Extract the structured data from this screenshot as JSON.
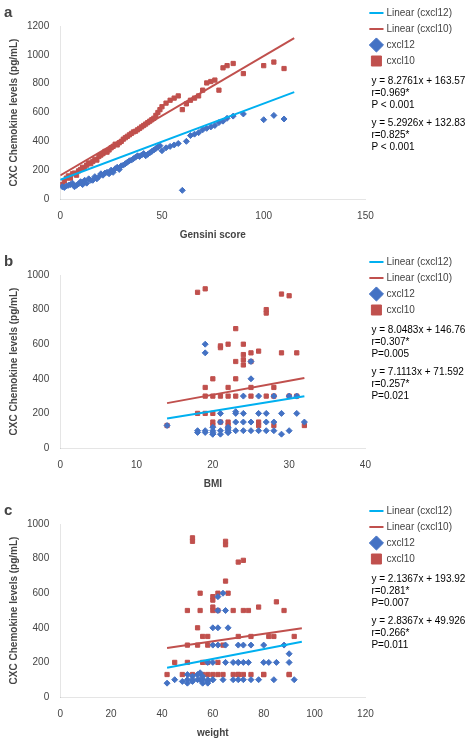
{
  "chart_data": [
    {
      "type": "scatter",
      "title": "a",
      "x_label": "Gensini score",
      "y_label": "CXC Chemokine levels (pg/mL)",
      "xlim": [
        0,
        150
      ],
      "ylim": [
        0,
        1200
      ],
      "xticks": [
        0,
        50,
        100,
        150
      ],
      "yticks": [
        0,
        200,
        400,
        600,
        800,
        1000,
        1200
      ],
      "grid": false,
      "legend": "right",
      "series": [
        {
          "name": "cxcl12",
          "type": "scatter",
          "marker": "diamond",
          "color": "#4472C4",
          "x": [
            1,
            2,
            3,
            4,
            5,
            6,
            7,
            8,
            9,
            10,
            11,
            12,
            13,
            14,
            15,
            16,
            17,
            18,
            19,
            20,
            21,
            22,
            23,
            24,
            25,
            26,
            27,
            28,
            29,
            30,
            31,
            32,
            33,
            34,
            35,
            36,
            37,
            38,
            39,
            40,
            41,
            42,
            43,
            44,
            45,
            46,
            47,
            48,
            49,
            50,
            52,
            54,
            56,
            58,
            60,
            62,
            64,
            66,
            68,
            70,
            72,
            74,
            76,
            78,
            80,
            82,
            85,
            90,
            100,
            105,
            110
          ],
          "values": [
            85,
            80,
            90,
            95,
            100,
            110,
            85,
            95,
            105,
            120,
            100,
            130,
            110,
            140,
            130,
            130,
            155,
            140,
            155,
            175,
            165,
            180,
            185,
            175,
            200,
            185,
            210,
            220,
            205,
            230,
            235,
            245,
            255,
            265,
            270,
            280,
            290,
            300,
            295,
            305,
            315,
            300,
            310,
            320,
            330,
            340,
            350,
            360,
            370,
            335,
            355,
            365,
            375,
            385,
            60,
            400,
            440,
            450,
            460,
            480,
            490,
            500,
            510,
            530,
            540,
            560,
            575,
            590,
            550,
            580,
            555
          ]
        },
        {
          "name": "cxcl10",
          "type": "scatter",
          "marker": "square",
          "color": "#C0504D",
          "x": [
            1,
            2,
            3,
            4,
            5,
            6,
            7,
            8,
            9,
            10,
            11,
            12,
            13,
            14,
            15,
            16,
            17,
            18,
            19,
            20,
            21,
            22,
            23,
            24,
            25,
            26,
            27,
            28,
            29,
            30,
            31,
            32,
            33,
            34,
            35,
            36,
            37,
            38,
            39,
            40,
            41,
            42,
            43,
            44,
            45,
            46,
            47,
            48,
            49,
            50,
            52,
            54,
            56,
            58,
            60,
            62,
            64,
            66,
            68,
            70,
            72,
            74,
            76,
            78,
            80,
            82,
            85,
            90,
            100,
            105,
            110
          ],
          "values": [
            100,
            125,
            145,
            160,
            145,
            175,
            180,
            165,
            195,
            205,
            220,
            215,
            235,
            250,
            245,
            260,
            275,
            270,
            295,
            305,
            315,
            330,
            325,
            340,
            355,
            365,
            380,
            375,
            390,
            400,
            415,
            425,
            435,
            445,
            455,
            465,
            470,
            480,
            490,
            500,
            510,
            520,
            530,
            540,
            550,
            560,
            580,
            600,
            620,
            640,
            665,
            685,
            700,
            715,
            620,
            660,
            685,
            700,
            715,
            755,
            805,
            815,
            825,
            755,
            910,
            925,
            940,
            870,
            925,
            950,
            905
          ]
        },
        {
          "name": "Linear (cxcl12)",
          "type": "line",
          "line_style": "solid",
          "color": "#00B0F0",
          "x": [
            0,
            115
          ],
          "values": [
            132.83,
            741.479
          ]
        },
        {
          "name": "Linear (cxcl10)",
          "type": "line",
          "line_style": "solid",
          "color": "#C0504D",
          "x": [
            0,
            115
          ],
          "values": [
            163.57,
            1115.3215
          ]
        }
      ],
      "annotations": [
        "y = 8.2761x + 163.57",
        "r=0.969*",
        "P < 0.001",
        "y = 5.2926x + 132.83",
        "r=0.825*",
        "P < 0.001"
      ]
    },
    {
      "type": "scatter",
      "title": "b",
      "x_label": "BMI",
      "y_label": "CXC Chemokine levels (pg/mL)",
      "xlim": [
        0,
        40
      ],
      "ylim": [
        0,
        1000
      ],
      "xticks": [
        0,
        10,
        20,
        30,
        40
      ],
      "yticks": [
        0,
        200,
        400,
        600,
        800,
        1000
      ],
      "grid": false,
      "legend": "right",
      "series": [
        {
          "name": "cxcl12",
          "type": "scatter",
          "marker": "diamond",
          "color": "#4472C4",
          "x": [
            14,
            18,
            18,
            19,
            19,
            19,
            19,
            20,
            20,
            20,
            20,
            20,
            21,
            21,
            21,
            21,
            22,
            22,
            22,
            22,
            22,
            23,
            23,
            23,
            23,
            24,
            24,
            24,
            24,
            25,
            25,
            25,
            25,
            26,
            26,
            26,
            27,
            27,
            27,
            28,
            28,
            28,
            29,
            29,
            30,
            30,
            31,
            31,
            32
          ],
          "values": [
            130,
            100,
            90,
            550,
            600,
            100,
            90,
            80,
            100,
            120,
            90,
            80,
            200,
            150,
            100,
            80,
            90,
            100,
            110,
            120,
            90,
            200,
            210,
            150,
            100,
            300,
            200,
            150,
            100,
            500,
            400,
            150,
            100,
            200,
            300,
            100,
            200,
            150,
            100,
            300,
            150,
            100,
            200,
            80,
            300,
            100,
            200,
            300,
            150
          ]
        },
        {
          "name": "cxcl10",
          "type": "scatter",
          "marker": "square",
          "color": "#C0504D",
          "x": [
            14,
            18,
            18,
            19,
            19,
            19,
            19,
            20,
            20,
            20,
            20,
            20,
            21,
            21,
            21,
            21,
            22,
            22,
            22,
            22,
            22,
            23,
            23,
            23,
            23,
            24,
            24,
            24,
            24,
            25,
            25,
            25,
            25,
            26,
            26,
            26,
            27,
            27,
            27,
            28,
            28,
            28,
            29,
            29,
            30,
            30,
            31,
            31,
            32
          ],
          "values": [
            130,
            200,
            900,
            920,
            300,
            350,
            200,
            130,
            150,
            200,
            300,
            400,
            150,
            300,
            580,
            590,
            600,
            300,
            350,
            130,
            150,
            690,
            500,
            400,
            300,
            600,
            540,
            510,
            480,
            300,
            350,
            500,
            550,
            560,
            130,
            150,
            780,
            800,
            300,
            300,
            350,
            130,
            550,
            890,
            300,
            880,
            550,
            300,
            130
          ]
        },
        {
          "name": "Linear (cxcl12)",
          "type": "line",
          "line_style": "solid",
          "color": "#00B0F0",
          "x": [
            14,
            32
          ],
          "values": [
            171.1502,
            299.1536
          ]
        },
        {
          "name": "Linear (cxcl10)",
          "type": "line",
          "line_style": "solid",
          "color": "#C0504D",
          "x": [
            14,
            32
          ],
          "values": [
            259.4362,
            404.3056
          ]
        }
      ],
      "annotations": [
        "y = 8.0483x + 146.76",
        "r=0.307*",
        "P=0.005",
        "y = 7.1113x + 71.592",
        "r=0.257*",
        "P=0.021"
      ]
    },
    {
      "type": "scatter",
      "title": "c",
      "x_label": "weight",
      "y_label": "CXC Chemokine levels (pg/mL)",
      "xlim": [
        0,
        120
      ],
      "ylim": [
        0,
        1000
      ],
      "xticks": [
        0,
        20,
        40,
        60,
        80,
        100,
        120
      ],
      "yticks": [
        0,
        200,
        400,
        600,
        800,
        1000
      ],
      "grid": false,
      "legend": "right",
      "series": [
        {
          "name": "cxcl12",
          "type": "scatter",
          "marker": "diamond",
          "color": "#4472C4",
          "x": [
            42,
            45,
            48,
            50,
            50,
            50,
            52,
            52,
            52,
            54,
            54,
            55,
            55,
            56,
            56,
            56,
            58,
            58,
            58,
            58,
            60,
            60,
            60,
            60,
            60,
            62,
            62,
            62,
            62,
            64,
            64,
            65,
            65,
            65,
            66,
            68,
            68,
            70,
            70,
            70,
            70,
            72,
            72,
            72,
            74,
            75,
            75,
            78,
            80,
            80,
            82,
            84,
            85,
            88,
            90,
            90,
            92
          ],
          "values": [
            80,
            100,
            90,
            80,
            100,
            130,
            100,
            120,
            90,
            130,
            100,
            140,
            100,
            80,
            100,
            120,
            90,
            100,
            80,
            200,
            300,
            400,
            100,
            200,
            100,
            300,
            400,
            500,
            580,
            600,
            100,
            200,
            300,
            500,
            400,
            100,
            200,
            200,
            300,
            100,
            200,
            100,
            200,
            300,
            200,
            100,
            300,
            100,
            200,
            300,
            200,
            100,
            200,
            300,
            200,
            250,
            100
          ]
        },
        {
          "name": "cxcl10",
          "type": "scatter",
          "marker": "square",
          "color": "#C0504D",
          "x": [
            42,
            45,
            48,
            50,
            50,
            50,
            52,
            52,
            52,
            54,
            54,
            55,
            55,
            56,
            56,
            56,
            58,
            58,
            58,
            58,
            60,
            60,
            60,
            60,
            60,
            62,
            62,
            62,
            62,
            64,
            64,
            65,
            65,
            65,
            66,
            68,
            68,
            70,
            70,
            70,
            70,
            72,
            72,
            72,
            74,
            75,
            75,
            78,
            80,
            80,
            82,
            84,
            85,
            88,
            90,
            90,
            92
          ],
          "values": [
            130,
            200,
            130,
            500,
            300,
            200,
            900,
            920,
            130,
            300,
            400,
            500,
            600,
            350,
            130,
            200,
            350,
            200,
            130,
            300,
            580,
            500,
            560,
            520,
            130,
            500,
            600,
            130,
            200,
            130,
            300,
            670,
            900,
            880,
            600,
            500,
            130,
            780,
            130,
            350,
            130,
            790,
            130,
            500,
            500,
            350,
            130,
            520,
            130,
            130,
            350,
            350,
            550,
            500,
            130,
            130,
            350
          ]
        },
        {
          "name": "Linear (cxcl12)",
          "type": "line",
          "line_style": "solid",
          "color": "#00B0F0",
          "x": [
            42,
            95
          ],
          "values": [
            169.0674,
            319.4125
          ]
        },
        {
          "name": "Linear (cxcl10)",
          "type": "line",
          "line_style": "solid",
          "color": "#C0504D",
          "x": [
            42,
            95
          ],
          "values": [
            283.6614,
            396.9065
          ]
        }
      ],
      "annotations": [
        "y = 2.1367x + 193.92",
        "r=0.281*",
        "P=0.007",
        "y = 2.8367x + 49.926",
        "r=0.266*",
        "P=0.011"
      ]
    }
  ]
}
